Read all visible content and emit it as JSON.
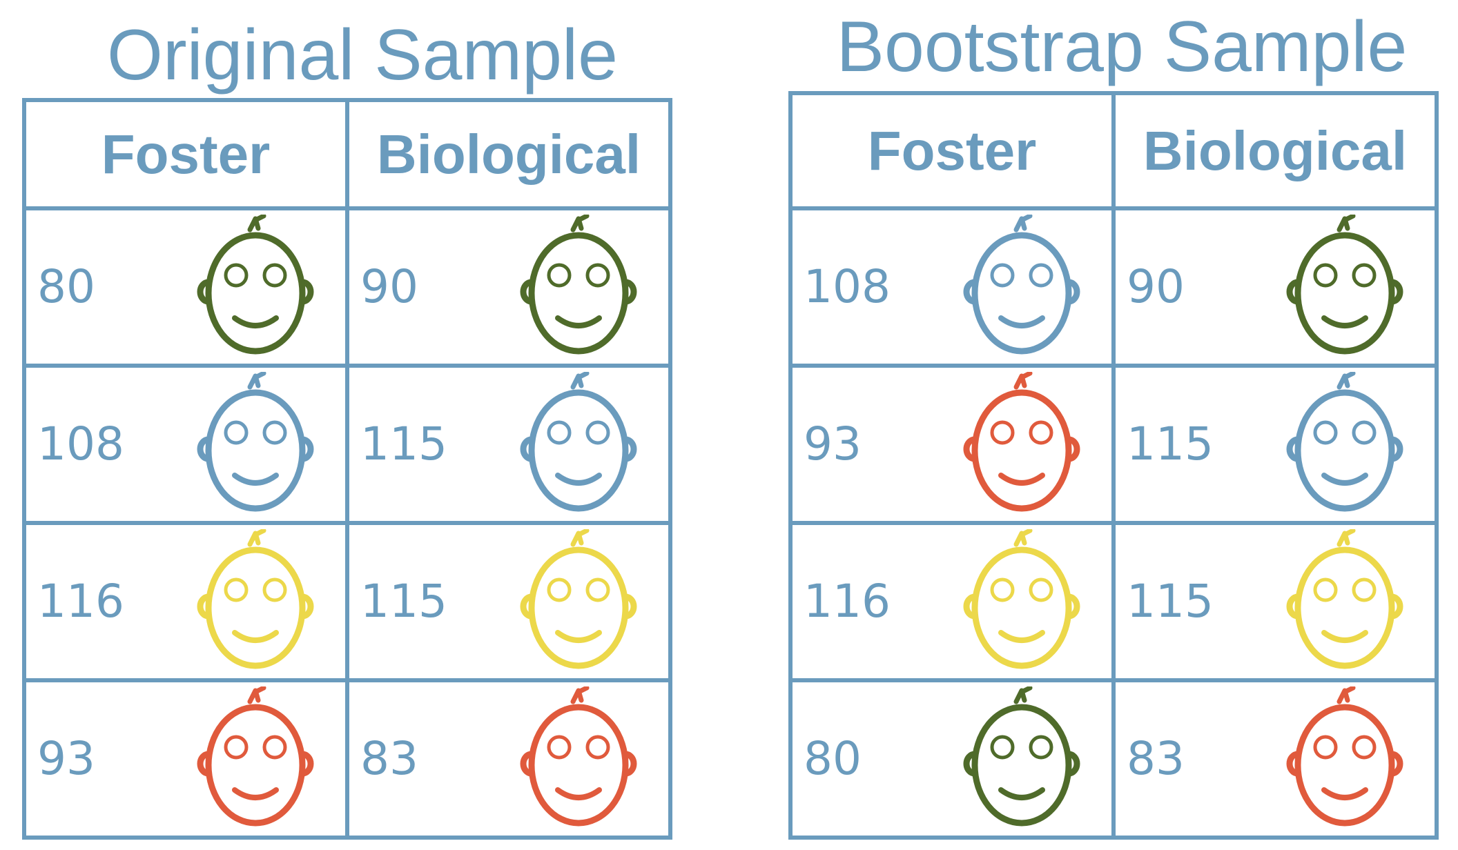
{
  "colors": {
    "border": "#6a9bbd",
    "text": "#6a9bbd",
    "green": "#4f6b2a",
    "blue": "#6a9bbd",
    "yellow": "#ecd84a",
    "red": "#e05a3c"
  },
  "panels": [
    {
      "title": "Original Sample",
      "headers": [
        "Foster",
        "Biological"
      ],
      "rows": [
        [
          {
            "value": "80",
            "color": "#4f6b2a",
            "icon": "baby-face-icon"
          },
          {
            "value": "90",
            "color": "#4f6b2a",
            "icon": "baby-face-icon"
          }
        ],
        [
          {
            "value": "108",
            "color": "#6a9bbd",
            "icon": "baby-face-icon"
          },
          {
            "value": "115",
            "color": "#6a9bbd",
            "icon": "baby-face-icon"
          }
        ],
        [
          {
            "value": "116",
            "color": "#ecd84a",
            "icon": "baby-face-icon"
          },
          {
            "value": "115",
            "color": "#ecd84a",
            "icon": "baby-face-icon"
          }
        ],
        [
          {
            "value": "93",
            "color": "#e05a3c",
            "icon": "baby-face-icon"
          },
          {
            "value": "83",
            "color": "#e05a3c",
            "icon": "baby-face-icon"
          }
        ]
      ]
    },
    {
      "title": "Bootstrap Sample",
      "headers": [
        "Foster",
        "Biological"
      ],
      "rows": [
        [
          {
            "value": "108",
            "color": "#6a9bbd",
            "icon": "baby-face-icon"
          },
          {
            "value": "90",
            "color": "#4f6b2a",
            "icon": "baby-face-icon"
          }
        ],
        [
          {
            "value": "93",
            "color": "#e05a3c",
            "icon": "baby-face-icon"
          },
          {
            "value": "115",
            "color": "#6a9bbd",
            "icon": "baby-face-icon"
          }
        ],
        [
          {
            "value": "116",
            "color": "#ecd84a",
            "icon": "baby-face-icon"
          },
          {
            "value": "115",
            "color": "#ecd84a",
            "icon": "baby-face-icon"
          }
        ],
        [
          {
            "value": "80",
            "color": "#4f6b2a",
            "icon": "baby-face-icon"
          },
          {
            "value": "83",
            "color": "#e05a3c",
            "icon": "baby-face-icon"
          }
        ]
      ]
    }
  ]
}
